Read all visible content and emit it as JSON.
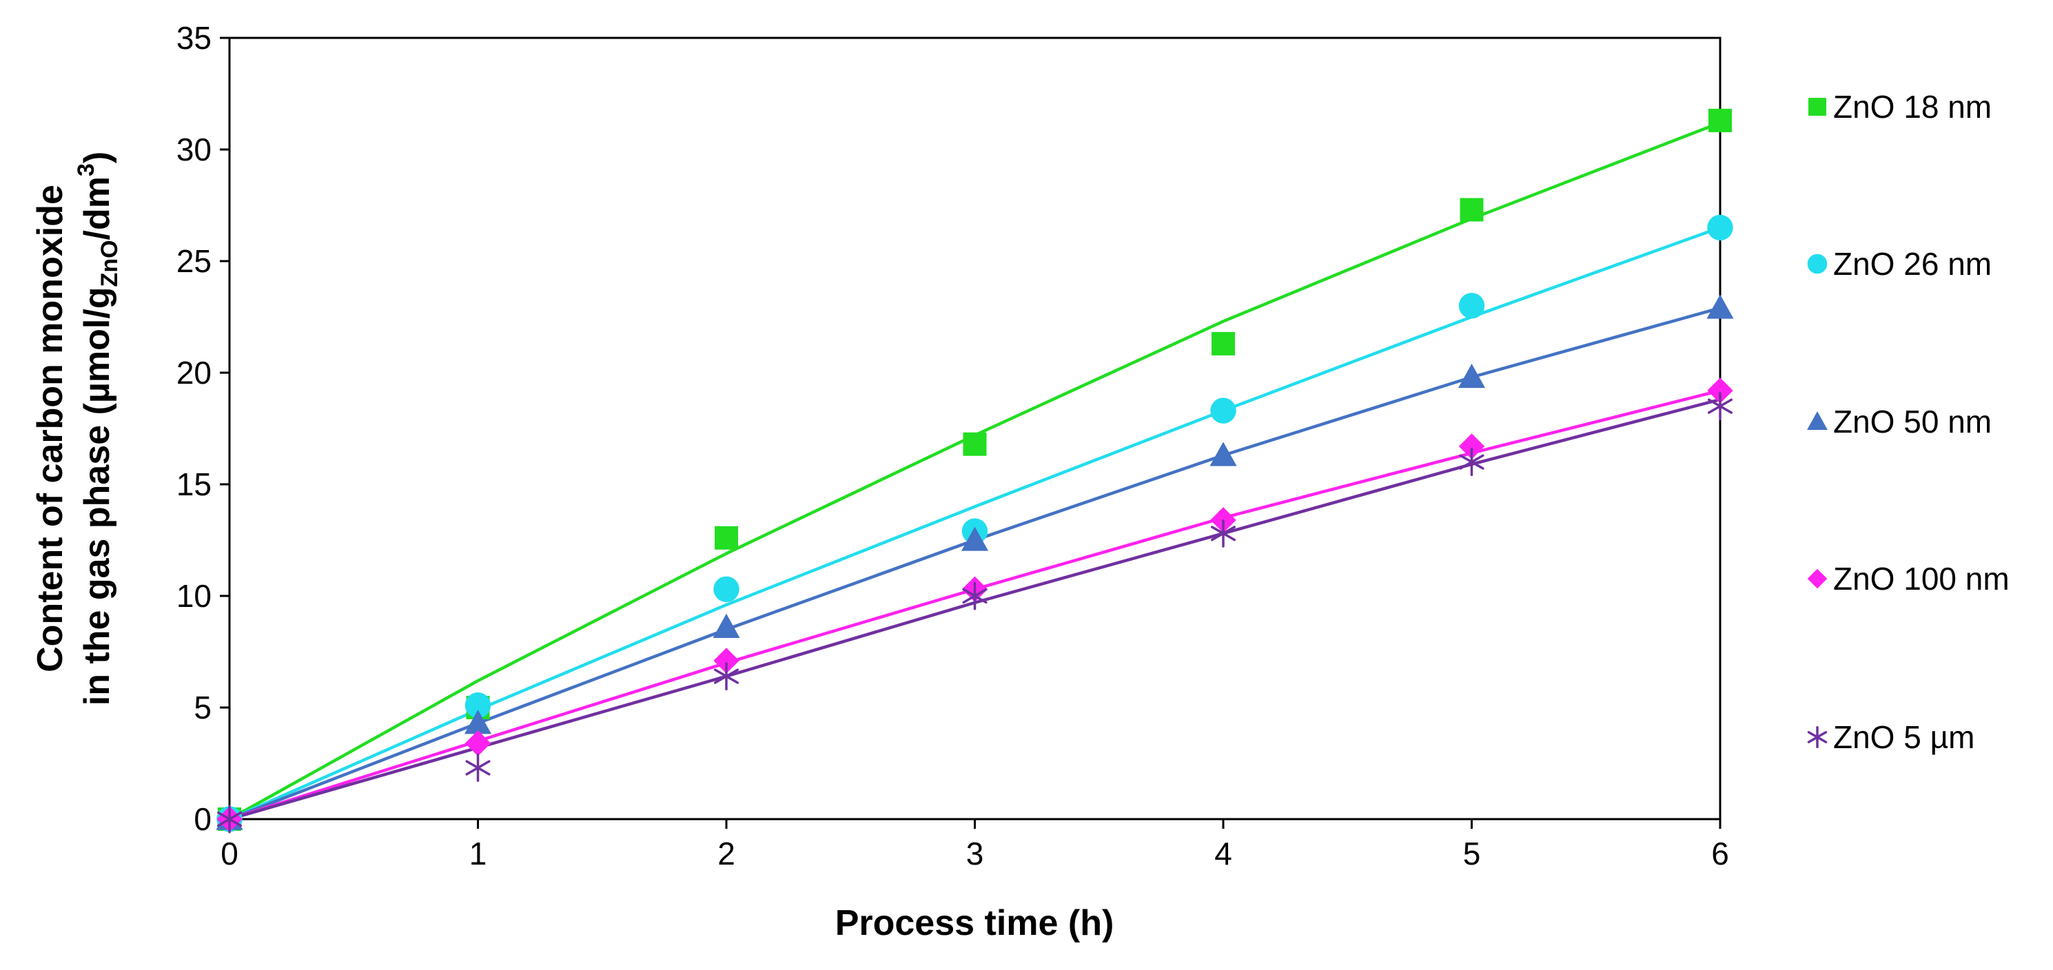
{
  "chart_data": {
    "type": "scatter",
    "xlabel": "Process time (h)",
    "ylabel": {
      "line1": "Content of carbon monoxide",
      "line2_prefix": "in the gas phase (µmol/g",
      "line2_sub": "ZnO",
      "line2_mid": "/dm",
      "line2_sup": "3",
      "line2_suffix": ")"
    },
    "xlim": [
      0,
      6
    ],
    "ylim": [
      0,
      35
    ],
    "xticks": [
      0,
      1,
      2,
      3,
      4,
      5,
      6
    ],
    "yticks": [
      0,
      5,
      10,
      15,
      20,
      25,
      30,
      35
    ],
    "grid": false,
    "legend_position": "right",
    "x": [
      0,
      1,
      2,
      3,
      4,
      5,
      6
    ],
    "series": [
      {
        "name": "ZnO 18 nm",
        "color": "#22dd22",
        "marker": "square",
        "values": [
          0,
          5.0,
          12.6,
          16.8,
          21.3,
          27.3,
          31.3
        ],
        "fit": [
          0,
          6.2,
          11.9,
          17.2,
          22.3,
          26.9,
          31.2
        ]
      },
      {
        "name": "ZnO 26 nm",
        "color": "#22ddee",
        "marker": "circle",
        "values": [
          0,
          5.1,
          10.3,
          12.9,
          18.3,
          23.0,
          26.5
        ],
        "fit": [
          0,
          4.9,
          9.6,
          14.0,
          18.3,
          22.5,
          26.5
        ]
      },
      {
        "name": "ZnO 50 nm",
        "color": "#4472c4",
        "marker": "triangle",
        "values": [
          0,
          4.3,
          8.6,
          12.5,
          16.3,
          19.8,
          22.9
        ],
        "fit": [
          0,
          4.3,
          8.5,
          12.5,
          16.3,
          19.8,
          22.9
        ]
      },
      {
        "name": "ZnO 100 nm",
        "color": "#ff22ee",
        "marker": "diamond",
        "values": [
          0,
          3.4,
          7.1,
          10.3,
          13.4,
          16.7,
          19.2
        ],
        "fit": [
          0,
          3.5,
          7.0,
          10.3,
          13.5,
          16.4,
          19.2
        ]
      },
      {
        "name": "ZnO 5 µm",
        "color": "#7030a0",
        "marker": "asterisk",
        "values": [
          0,
          2.3,
          6.4,
          10.0,
          12.8,
          16.0,
          18.5
        ],
        "fit": [
          0,
          3.2,
          6.4,
          9.7,
          12.8,
          15.9,
          18.8
        ]
      }
    ]
  }
}
